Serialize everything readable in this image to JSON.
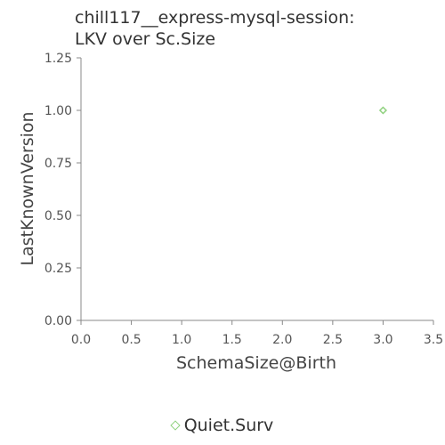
{
  "chart_data": {
    "type": "scatter",
    "title_lines": [
      "chill117__express-mysql-session:",
      "LKV over Sc.Size"
    ],
    "xlabel": "SchemaSize@Birth",
    "ylabel": "LastKnownVersion",
    "xlim": [
      0,
      3.5
    ],
    "ylim": [
      0,
      1.25
    ],
    "xticks": [
      "0.0",
      "0.5",
      "1.0",
      "1.5",
      "2.0",
      "2.5",
      "3.0",
      "3.5"
    ],
    "yticks": [
      "0.00",
      "0.25",
      "0.50",
      "0.75",
      "1.00",
      "1.25"
    ],
    "grid": false,
    "legend_position": "bottom",
    "series": [
      {
        "name": "Quiet.Surv",
        "color": "#8fd17e",
        "marker": "diamond",
        "points": [
          {
            "x": 3.0,
            "y": 1.0
          }
        ]
      }
    ]
  }
}
